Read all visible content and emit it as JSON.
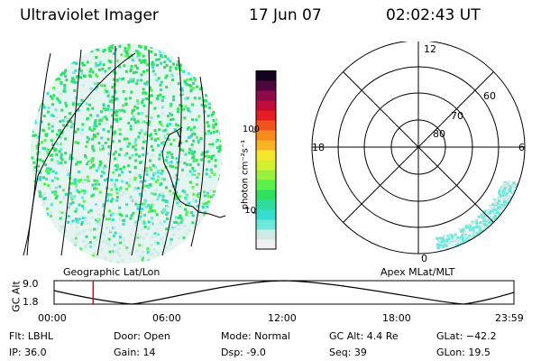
{
  "header": {
    "title": "Ultraviolet Imager",
    "date": "17 Jun 07",
    "time": "02:02:43 UT"
  },
  "left_panel": {
    "caption": "Geographic Lat/Lon"
  },
  "right_panel": {
    "caption": "Apex MLat/MLT",
    "mlt_labels": {
      "top": "12",
      "left": "18",
      "right": "6",
      "bottom": "0"
    },
    "lat_labels": [
      "80",
      "70",
      "60"
    ]
  },
  "colorbar": {
    "unit_label": "photon cm⁻²s⁻¹",
    "ticks": [
      "100",
      "10"
    ],
    "colors": [
      "#f0f0f0",
      "#cfeae6",
      "#6fe8dc",
      "#35ddd0",
      "#2fdc9e",
      "#2fe05e",
      "#5cf04a",
      "#9af03f",
      "#d2f030",
      "#f6e62c",
      "#f9b224",
      "#f88a1c",
      "#f2521c",
      "#e61c22",
      "#bf0a3a",
      "#8c0a46",
      "#4e063e",
      "#14021c"
    ]
  },
  "altitude_plot": {
    "ylabel": "GC Alt",
    "ymax": "9.0",
    "ymin": "1.8",
    "x_ticks": [
      "00:00",
      "06:00",
      "12:00",
      "18:00",
      "23:59"
    ],
    "current_time_fraction": 0.085
  },
  "info": {
    "flt": "Flt: LBHL",
    "ip": "IP: 36.0",
    "door": "Door: Open",
    "gain": "Gain: 14",
    "mode": "Mode: Normal",
    "dsp": "Dsp:    -9.0",
    "gcalt": "GC Alt: 4.4 Re",
    "seq": "Seq: 39",
    "glat": "GLat: −42.2",
    "glon": "GLon:  19.5"
  }
}
